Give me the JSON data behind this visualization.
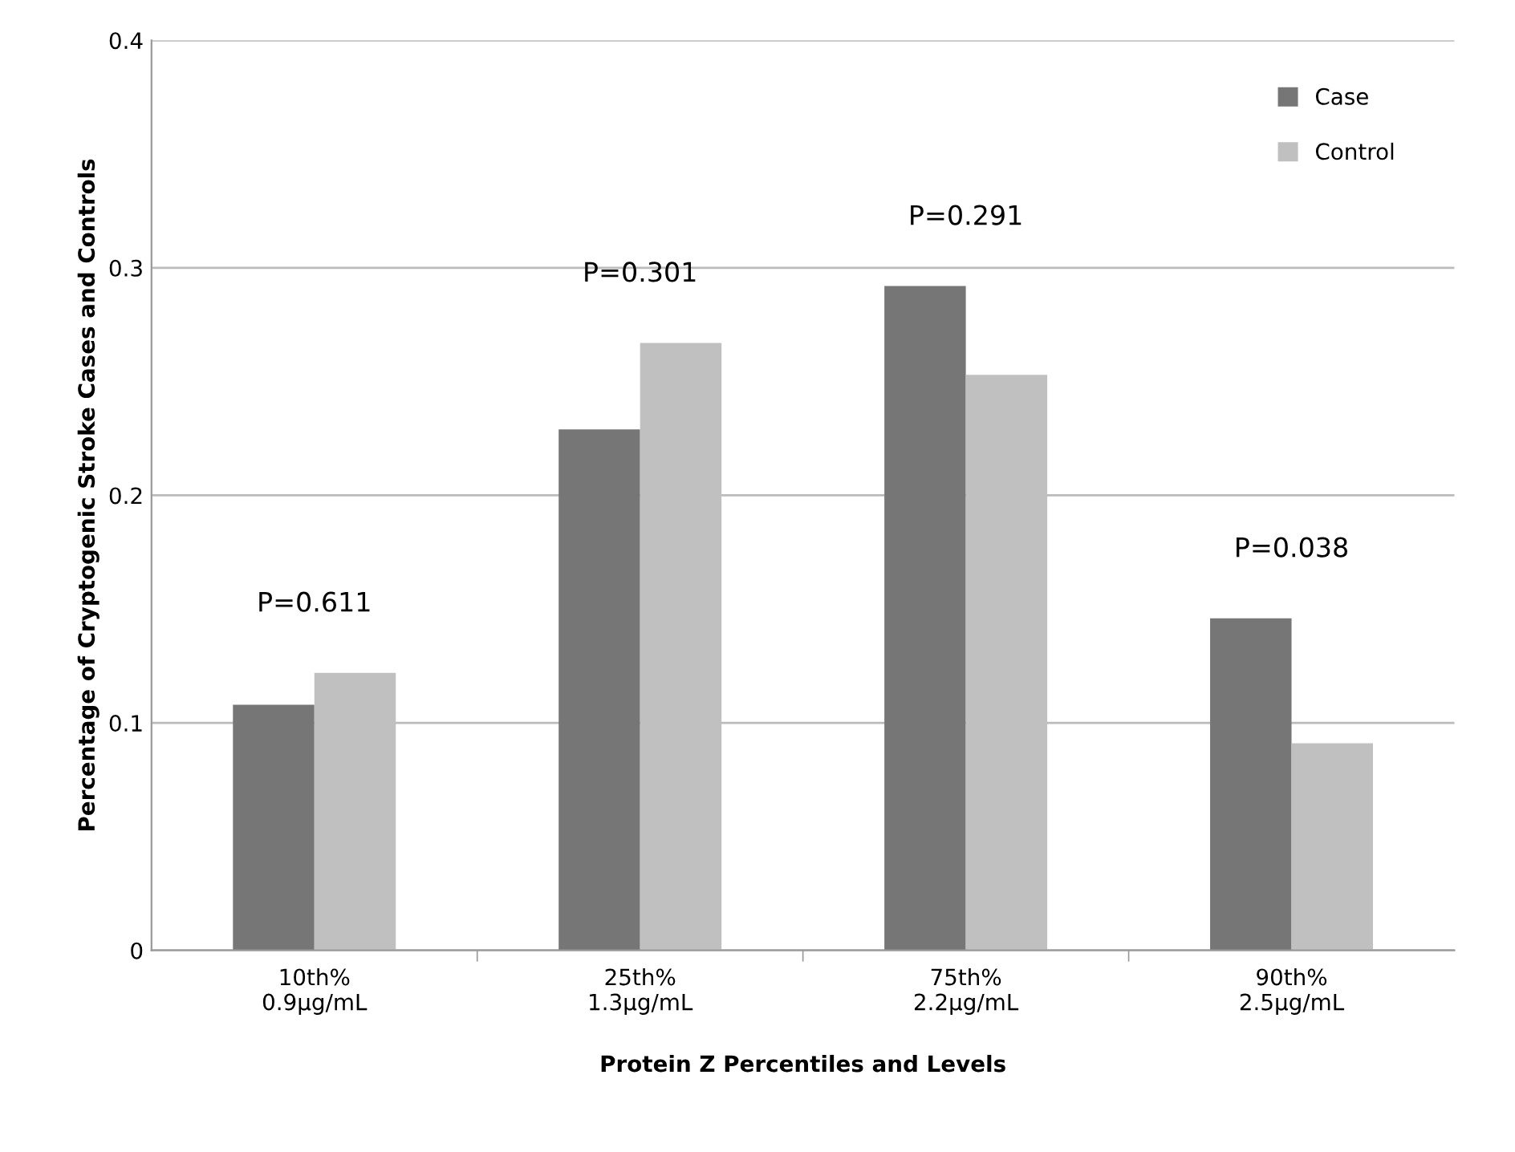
{
  "chart_data": {
    "type": "bar",
    "xlabel": "Protein Z Percentiles and Levels",
    "ylabel": "Percentage of Cryptogenic Stroke Cases and Controls",
    "categories": [
      "10th%\n0.9µg/mL",
      "25th%\n1.3µg/mL",
      "75th%\n2.2µg/mL",
      "90th%\n2.5µg/mL"
    ],
    "series": [
      {
        "name": "Case",
        "color": "#767676",
        "values": [
          0.108,
          0.229,
          0.292,
          0.146
        ]
      },
      {
        "name": "Control",
        "color": "#c0c0c0",
        "values": [
          0.122,
          0.267,
          0.253,
          0.091
        ]
      }
    ],
    "ylim": [
      0,
      0.4
    ],
    "yticks": [
      {
        "value": 0,
        "label": "0"
      },
      0.1,
      0.2,
      0.3,
      0.4
    ],
    "grid": "y",
    "legend": "top right",
    "annotations": [
      "P=0.611",
      "P=0.301",
      "P=0.291",
      "P=0.038"
    ]
  }
}
